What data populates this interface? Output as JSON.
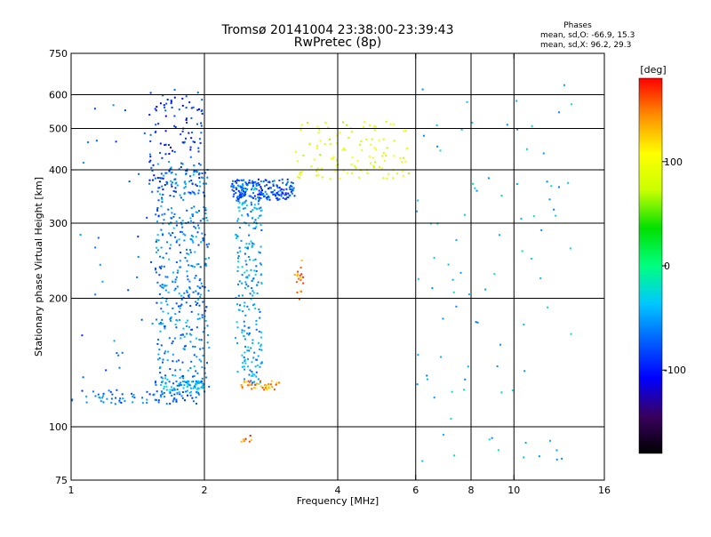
{
  "chart_data": {
    "type": "scatter",
    "title": "Tromsø 20141004 23:38:00-23:39:43",
    "subtitle": "RwPretec (8p)",
    "info": {
      "heading": "Phases",
      "line_o": "mean, sd,O: -66.9, 15.3",
      "line_x": "mean, sd,X:  96.2, 29.3"
    },
    "xlabel": "Frequency [MHz]",
    "ylabel": "Stationary phase Virtual Height [km]",
    "xscale": "log",
    "yscale": "log",
    "xlim": [
      1,
      16
    ],
    "ylim": [
      75,
      750
    ],
    "x_ticks": [
      1,
      2,
      4,
      6,
      8,
      10,
      16
    ],
    "x_tick_labels": [
      "1",
      "2",
      "4",
      "6",
      "8",
      "10",
      "16"
    ],
    "x_gridlines": [
      2,
      4,
      6,
      8,
      10
    ],
    "y_ticks": [
      75,
      100,
      200,
      300,
      400,
      500,
      600,
      750
    ],
    "y_tick_labels": [
      "75",
      "100",
      "200",
      "300",
      "400",
      "500",
      "600",
      "750"
    ],
    "y_gridlines": [
      100,
      200,
      300,
      400,
      500,
      600
    ],
    "grid": true,
    "colorbar": {
      "label": "[deg]",
      "range": [
        -180,
        180
      ],
      "ticks": [
        100,
        0,
        -100
      ],
      "tick_labels": [
        "100",
        "0",
        "-100"
      ],
      "colors": [
        "#000000",
        "#3a0060",
        "#0000ff",
        "#0060ff",
        "#00c8ff",
        "#00ff80",
        "#00e000",
        "#c8ff00",
        "#ffff00",
        "#ff9000",
        "#ff0000"
      ]
    },
    "traces": [
      {
        "name": "o_trace_low",
        "x_start": 1.0,
        "x_end": 1.95,
        "y_start": 113,
        "y_end": 122,
        "phase": -70,
        "count": 80
      },
      {
        "name": "o_trace_main_upper",
        "x_start": 1.5,
        "x_end": 1.98,
        "y_start": 350,
        "y_end": 620,
        "phase": -90,
        "count": 120
      },
      {
        "name": "o_trace_main_body",
        "x_start": 1.55,
        "x_end": 2.05,
        "y_start": 125,
        "y_end": 420,
        "phase": -60,
        "count": 450
      },
      {
        "name": "o_trace_curve_bottom",
        "x_start": 1.6,
        "x_end": 2.05,
        "y_start": 120,
        "y_end": 128,
        "phase": -45,
        "count": 70
      },
      {
        "name": "x_trace_body",
        "x_start": 2.35,
        "x_end": 2.7,
        "y_start": 125,
        "y_end": 380,
        "phase": -50,
        "count": 260
      },
      {
        "name": "x_trace_upper_band",
        "x_start": 2.3,
        "x_end": 3.2,
        "y_start": 340,
        "y_end": 380,
        "phase": -80,
        "count": 180
      },
      {
        "name": "x_trace_bottom_orange",
        "x_start": 2.4,
        "x_end": 2.95,
        "y_start": 122,
        "y_end": 128,
        "phase": 140,
        "count": 40
      },
      {
        "name": "f_region_spread",
        "x_start": 3.2,
        "x_end": 5.8,
        "y_start": 380,
        "y_end": 520,
        "phase": 90,
        "count": 120
      },
      {
        "name": "orange_cluster_3mhz",
        "x_start": 3.2,
        "x_end": 3.35,
        "y_start": 190,
        "y_end": 250,
        "phase": 150,
        "count": 18
      },
      {
        "name": "orange_cluster_2_5mhz_low",
        "x_start": 2.4,
        "x_end": 2.6,
        "y_start": 92,
        "y_end": 96,
        "phase": 150,
        "count": 8
      },
      {
        "name": "scattered_high_freq",
        "x_start": 6.0,
        "x_end": 13.5,
        "y_start": 80,
        "y_end": 650,
        "phase": -40,
        "count": 90
      },
      {
        "name": "scattered_low_freq",
        "x_start": 1.05,
        "x_end": 1.6,
        "y_start": 130,
        "y_end": 620,
        "phase": -70,
        "count": 35
      }
    ]
  }
}
